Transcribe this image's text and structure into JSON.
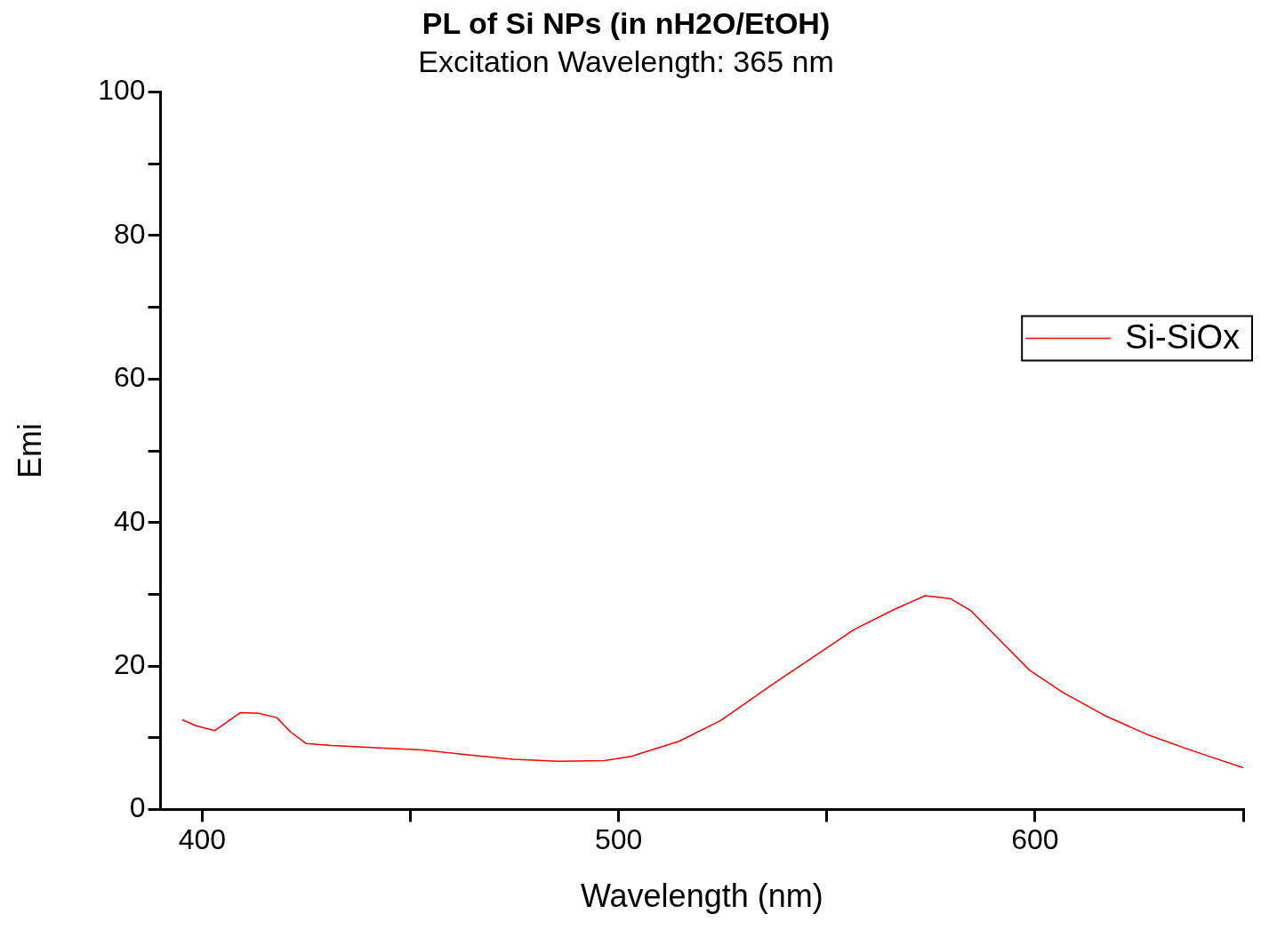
{
  "chart_data": {
    "type": "line",
    "title": "PL of Si NPs (in nH2O/EtOH)",
    "subtitle": "Excitation Wavelength: 365 nm",
    "xlabel": "Wavelength (nm)",
    "ylabel": "Emi",
    "xlim": [
      390,
      650
    ],
    "xticks": [
      400,
      {
        "value": 450,
        "label": null
      },
      500,
      {
        "value": 550,
        "label": null
      },
      600,
      {
        "value": 650,
        "label": null
      }
    ],
    "ylim": [
      0,
      100
    ],
    "yticks": [
      0,
      {
        "value": 10,
        "label": null
      },
      20,
      {
        "value": 30,
        "label": null
      },
      40,
      {
        "value": 50,
        "label": null
      },
      60,
      {
        "value": 70,
        "label": null
      },
      80,
      {
        "value": 90,
        "label": null
      },
      100
    ],
    "legend": "top right",
    "marker": "none",
    "line_style": "solid",
    "series": [
      {
        "name": "Si-SiOx",
        "color": "#ff0000",
        "x": [
          395.2,
          398.3,
          403,
          409.2,
          413.5,
          417.9,
          421.2,
          424.9,
          431,
          441.9,
          452.8,
          463.8,
          474.7,
          485.6,
          496.5,
          503,
          509.6,
          514.5,
          524.5,
          536.6,
          546.6,
          556.6,
          566.6,
          573.6,
          579.6,
          584.6,
          591.7,
          598.7,
          606.7,
          616.7,
          626.7,
          636.7,
          650
        ],
        "values": [
          12.5,
          11.7,
          11.0,
          13.5,
          13.4,
          12.8,
          10.8,
          9.2,
          8.9,
          8.6,
          8.3,
          7.6,
          7.0,
          6.7,
          6.8,
          7.4,
          8.6,
          9.5,
          12.4,
          17.3,
          21.2,
          25.1,
          28.0,
          29.8,
          29.4,
          27.7,
          23.5,
          19.4,
          16.3,
          13.1,
          10.5,
          8.4,
          5.8
        ]
      }
    ]
  }
}
